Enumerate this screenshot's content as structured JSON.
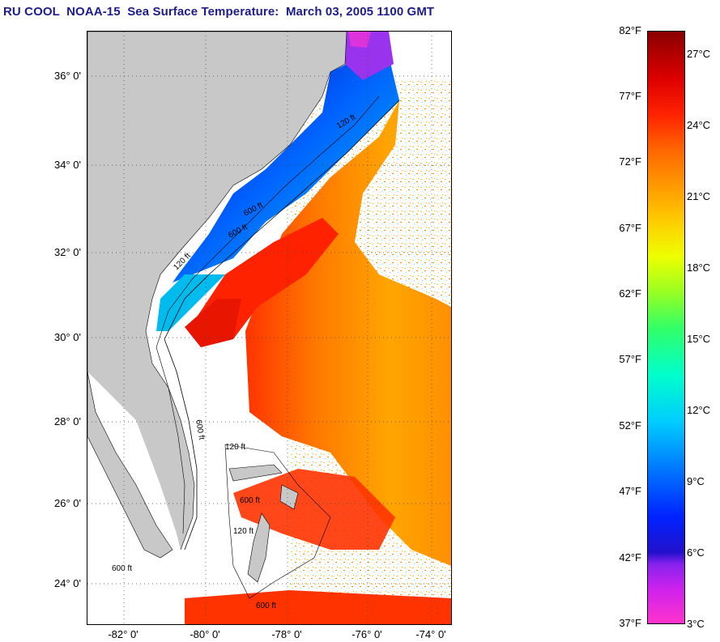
{
  "title": "RU COOL  NOAA-15  Sea Surface Temperature:  March 03, 2005 1100 GMT",
  "lat_labels": [
    "36° 0'",
    "34° 0'",
    "32° 0'",
    "30° 0'",
    "28° 0'",
    "26° 0'",
    "24° 0'"
  ],
  "lon_labels": [
    "-82° 0'",
    "-80° 0'",
    "-78° 0'",
    "-76° 0'",
    "-74° 0'"
  ],
  "contour_labels": [
    "120 ft",
    "600 ft",
    "600 ft",
    "120 ft",
    "600 ft",
    "120 ft",
    "600 ft",
    "600 ft",
    "120 ft",
    "600 ft"
  ],
  "colorbar": {
    "fahrenheit": [
      "82°F",
      "77°F",
      "72°F",
      "67°F",
      "62°F",
      "57°F",
      "52°F",
      "47°F",
      "42°F",
      "37°F"
    ],
    "celsius": [
      "27°C",
      "24°C",
      "21°C",
      "18°C",
      "15°C",
      "12°C",
      "9°C",
      "6°C",
      "3°C"
    ]
  },
  "colors": {
    "title": "#1c1c8c",
    "land": "#c8c8c8",
    "warm": "#ff2a00",
    "cold": "#0033ff"
  }
}
